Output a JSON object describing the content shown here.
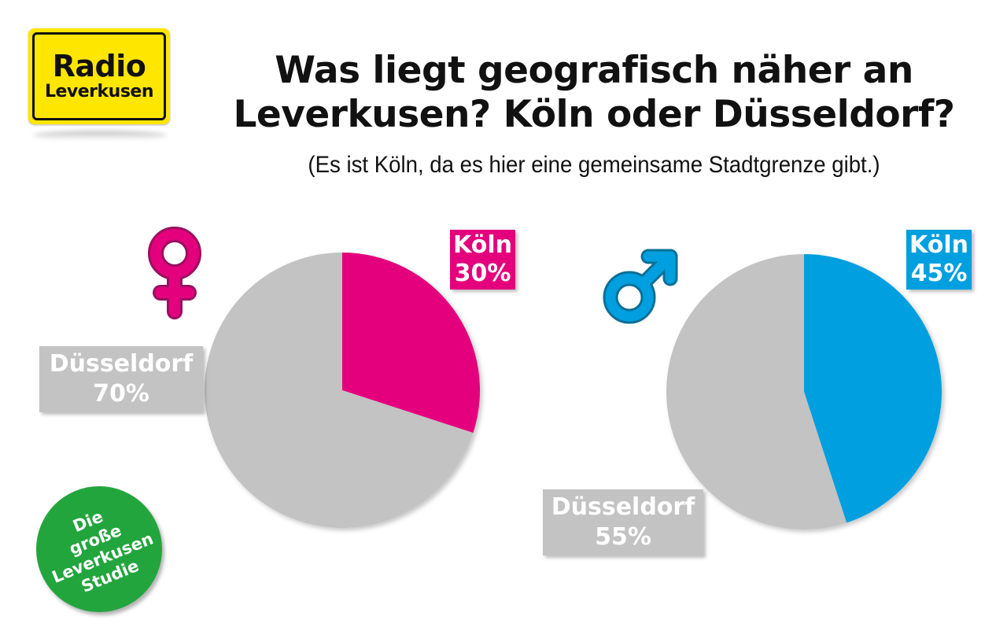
{
  "logo": {
    "line1": "Radio",
    "line2": "Leverkusen",
    "color": "#ffe600"
  },
  "title": {
    "line1": "Was liegt geografisch näher an",
    "line2": "Leverkusen? Köln oder Düsseldorf?"
  },
  "subtitle": "(Es ist Köln, da es hier eine gemeinsame Stadtgrenze gibt.)",
  "badge": {
    "lines": [
      "Die",
      "große",
      "Leverkusen",
      "Studie"
    ],
    "color": "#23a53e"
  },
  "symbols": {
    "female": "female-symbol-icon",
    "male": "male-symbol-icon"
  },
  "chart_data": [
    {
      "type": "pie",
      "group": "Frauen",
      "title": "",
      "slices": [
        {
          "label": "Köln",
          "value": 30,
          "color": "#e4007c",
          "display": "30%"
        },
        {
          "label": "Düsseldorf",
          "value": 70,
          "color": "#c3c3c3",
          "display": "70%"
        }
      ]
    },
    {
      "type": "pie",
      "group": "Männer",
      "title": "",
      "slices": [
        {
          "label": "Köln",
          "value": 45,
          "color": "#009fe0",
          "display": "45%"
        },
        {
          "label": "Düsseldorf",
          "value": 55,
          "color": "#c3c3c3",
          "display": "55%"
        }
      ]
    }
  ]
}
